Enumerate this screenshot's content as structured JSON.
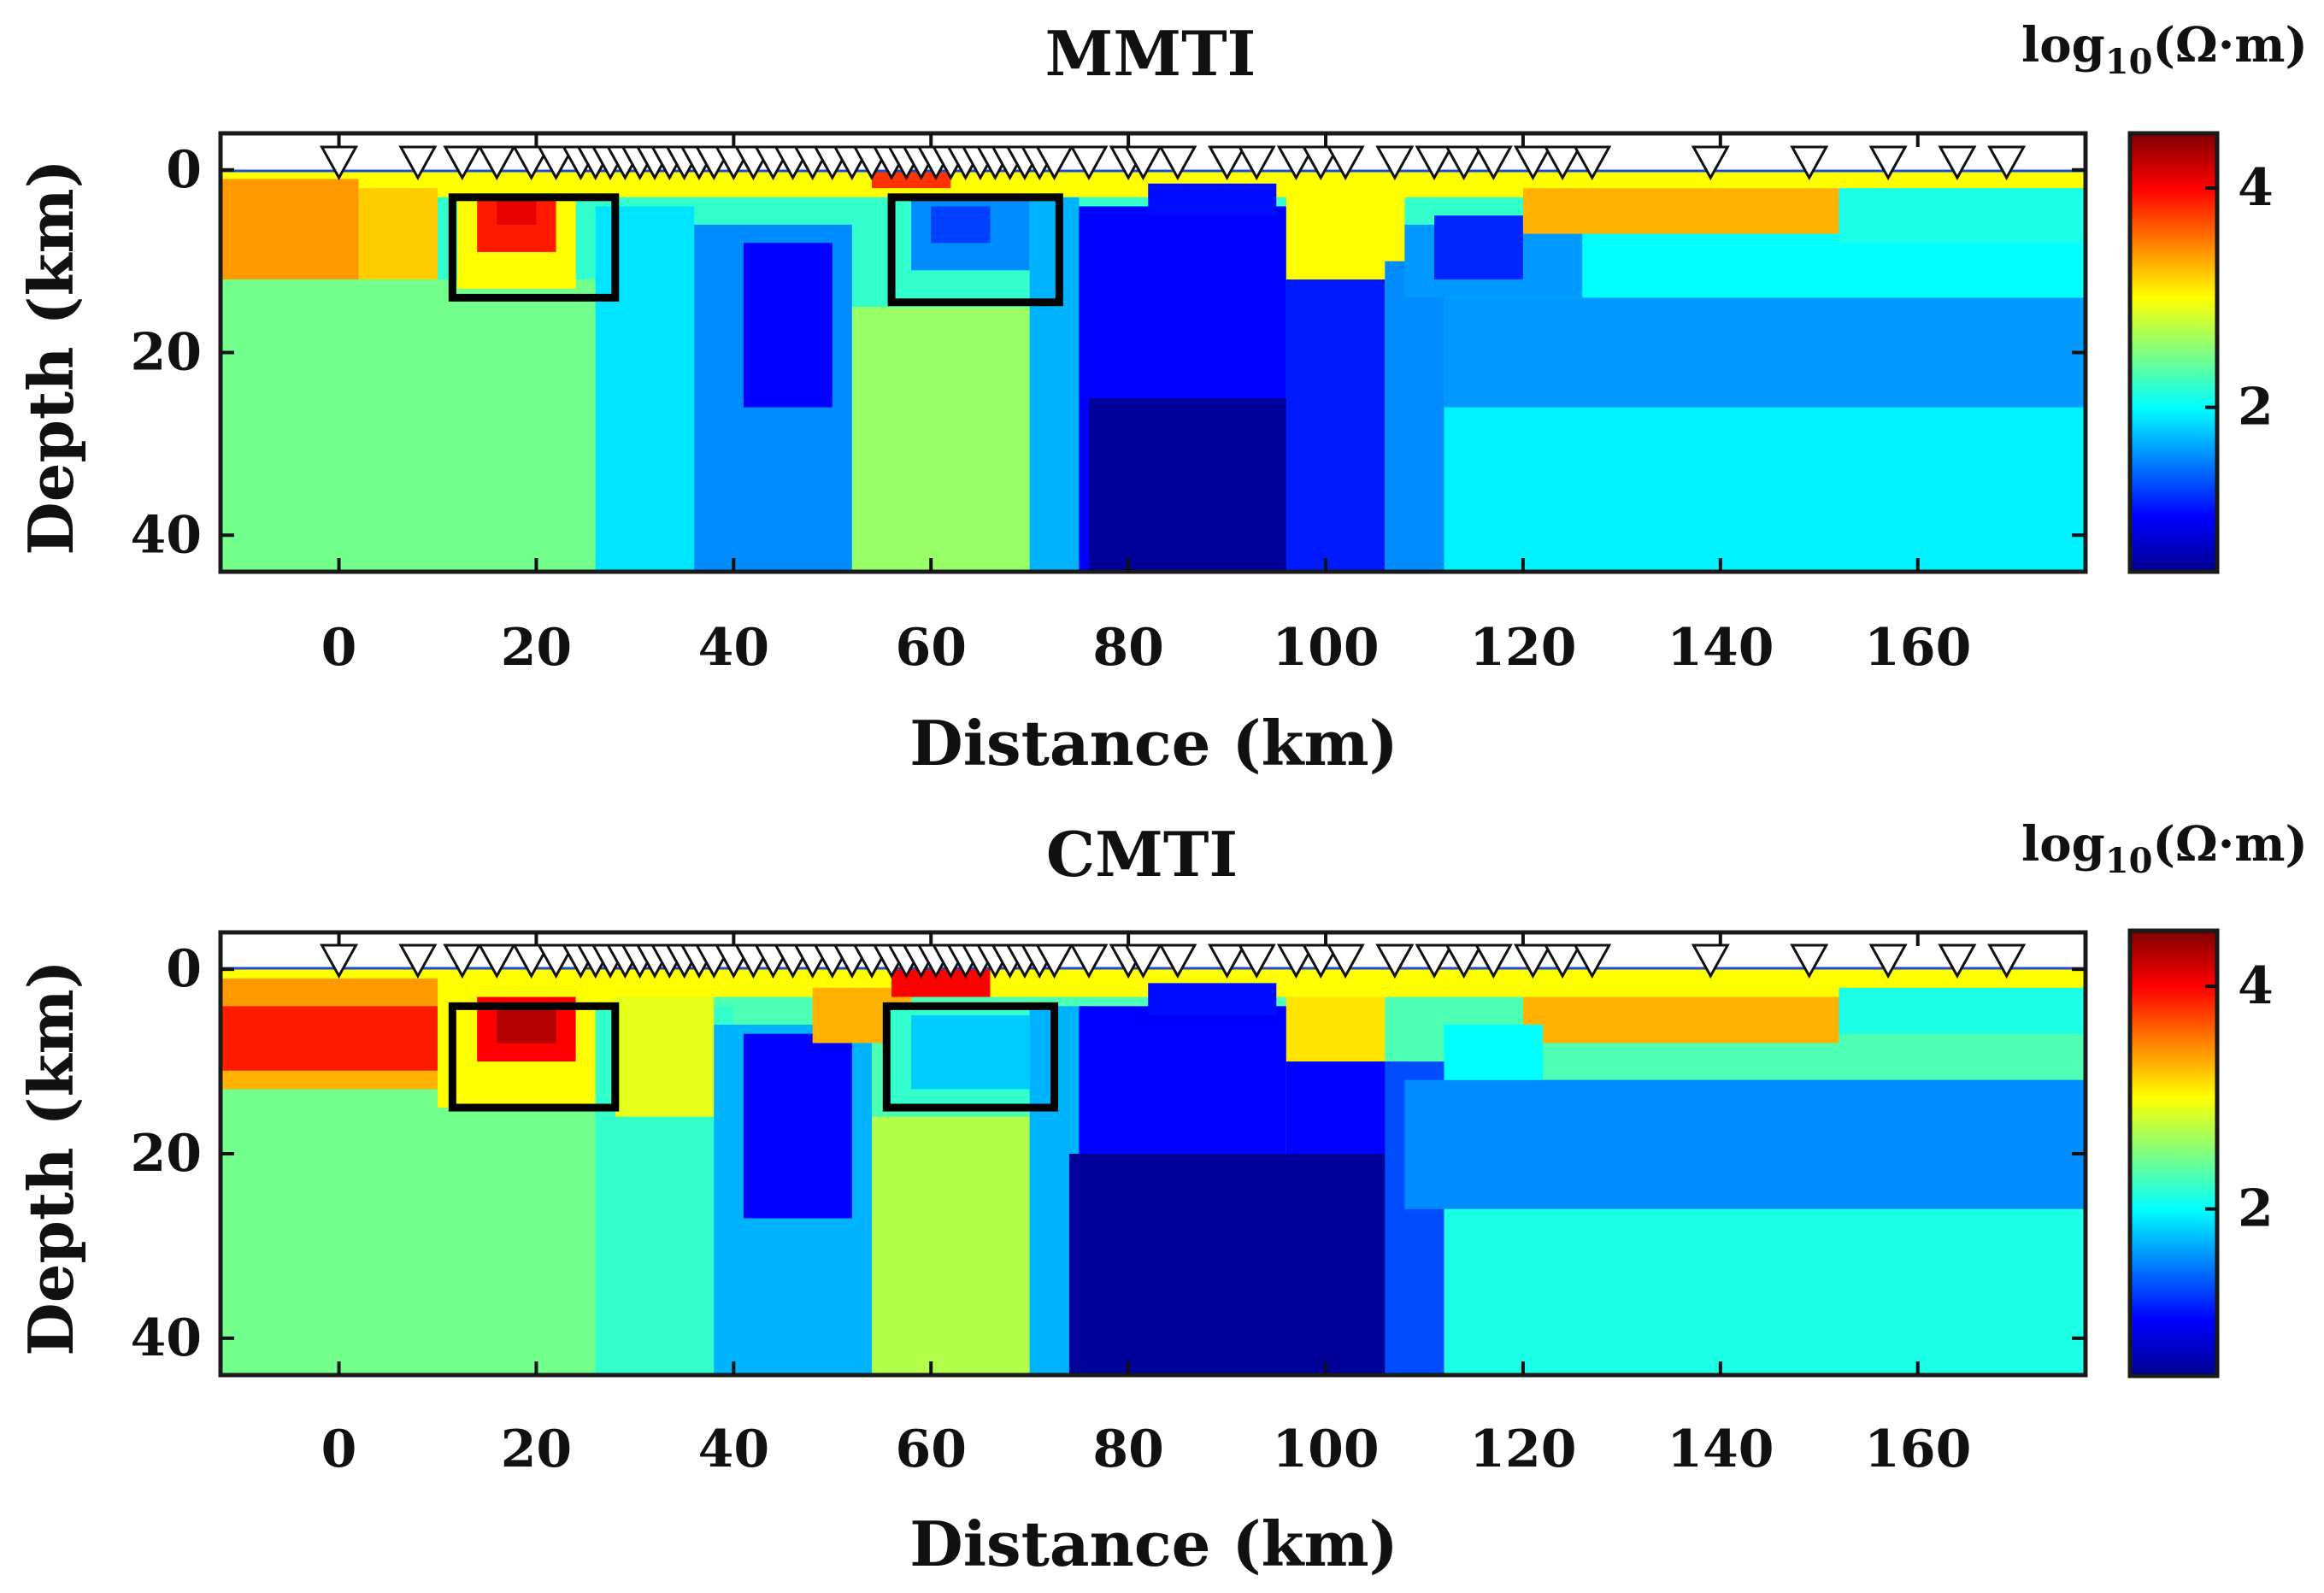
{
  "chart_data": [
    {
      "type": "heatmap",
      "title": "MMTI",
      "xlabel": "Distance (km)",
      "ylabel": "Depth (km)",
      "xlim": [
        -12,
        177
      ],
      "ylim": [
        44,
        -4
      ],
      "xticks": [
        0,
        20,
        40,
        60,
        80,
        100,
        120,
        140,
        160
      ],
      "yticks": [
        0,
        20,
        40
      ],
      "colorbar": {
        "unit_main": "log",
        "unit_sub": "10",
        "unit_tail": "(Ω·m)",
        "range": [
          0.5,
          4.5
        ],
        "ticks": [
          2,
          4
        ]
      },
      "stations_km": [
        0,
        8,
        12.5,
        16,
        19.5,
        22,
        24.5,
        26,
        27.5,
        29,
        30.5,
        32,
        33.5,
        35,
        36.5,
        38,
        40,
        42,
        44,
        46,
        48,
        50,
        52,
        54,
        56,
        57.5,
        59,
        60.5,
        62,
        63.5,
        65,
        66.5,
        68,
        69.5,
        71,
        72.5,
        76,
        80,
        81.5,
        85,
        90,
        93,
        97,
        99.5,
        102,
        107,
        111,
        114,
        117,
        121,
        124,
        127,
        139,
        149,
        157,
        164,
        169
      ],
      "highlight_boxes_km": [
        {
          "x": [
            11.5,
            28
          ],
          "depth": [
            3,
            14
          ]
        },
        {
          "x": [
            56,
            73
          ],
          "depth": [
            3,
            14.5
          ]
        }
      ],
      "resistivity_blocks": [
        {
          "x": [
            -12,
            177
          ],
          "depth": [
            0,
            44
          ],
          "value": 2.2
        },
        {
          "x": [
            -12,
            177
          ],
          "depth": [
            0,
            3
          ],
          "value": 3.0
        },
        {
          "x": [
            -12,
            2
          ],
          "depth": [
            1,
            12
          ],
          "value": 3.4
        },
        {
          "x": [
            2,
            10
          ],
          "depth": [
            2,
            13
          ],
          "value": 3.2
        },
        {
          "x": [
            -12,
            26
          ],
          "depth": [
            12,
            44
          ],
          "value": 2.45
        },
        {
          "x": [
            12,
            24
          ],
          "depth": [
            3,
            13
          ],
          "value": 3.0
        },
        {
          "x": [
            14,
            22
          ],
          "depth": [
            3,
            9
          ],
          "value": 3.9
        },
        {
          "x": [
            16,
            20
          ],
          "depth": [
            3,
            6
          ],
          "value": 4.1
        },
        {
          "x": [
            26,
            36
          ],
          "depth": [
            4,
            44
          ],
          "value": 1.9
        },
        {
          "x": [
            36,
            52
          ],
          "depth": [
            6,
            44
          ],
          "value": 1.55
        },
        {
          "x": [
            41,
            50
          ],
          "depth": [
            8,
            26
          ],
          "value": 1.0
        },
        {
          "x": [
            52,
            70
          ],
          "depth": [
            15,
            44
          ],
          "value": 2.6
        },
        {
          "x": [
            56,
            73
          ],
          "depth": [
            3,
            14
          ],
          "value": 2.2
        },
        {
          "x": [
            58,
            70
          ],
          "depth": [
            3,
            11
          ],
          "value": 1.55
        },
        {
          "x": [
            60,
            66
          ],
          "depth": [
            4,
            8
          ],
          "value": 1.25
        },
        {
          "x": [
            54,
            62
          ],
          "depth": [
            0,
            2
          ],
          "value": 3.8
        },
        {
          "x": [
            70,
            75
          ],
          "depth": [
            3,
            44
          ],
          "value": 1.7
        },
        {
          "x": [
            75,
            96
          ],
          "depth": [
            4,
            44
          ],
          "value": 1.0
        },
        {
          "x": [
            82,
            95
          ],
          "depth": [
            1.5,
            5
          ],
          "value": 1.05
        },
        {
          "x": [
            76,
            100
          ],
          "depth": [
            25,
            44
          ],
          "value": 0.55
        },
        {
          "x": [
            96,
            106
          ],
          "depth": [
            12,
            44
          ],
          "value": 1.1
        },
        {
          "x": [
            96,
            108
          ],
          "depth": [
            2,
            12
          ],
          "value": 3.0
        },
        {
          "x": [
            106,
            112
          ],
          "depth": [
            10,
            44
          ],
          "value": 1.55
        },
        {
          "x": [
            108,
            128
          ],
          "depth": [
            6,
            14
          ],
          "value": 1.6
        },
        {
          "x": [
            111,
            120
          ],
          "depth": [
            5,
            12
          ],
          "value": 1.15
        },
        {
          "x": [
            112,
            177
          ],
          "depth": [
            14,
            26
          ],
          "value": 1.6
        },
        {
          "x": [
            112,
            177
          ],
          "depth": [
            26,
            44
          ],
          "value": 1.95
        },
        {
          "x": [
            120,
            152
          ],
          "depth": [
            2,
            7
          ],
          "value": 3.3
        },
        {
          "x": [
            126,
            177
          ],
          "depth": [
            7,
            14
          ],
          "value": 2.0
        },
        {
          "x": [
            152,
            177
          ],
          "depth": [
            2,
            8
          ],
          "value": 2.1
        }
      ]
    },
    {
      "type": "heatmap",
      "title": "CMTI",
      "xlabel": "Distance (km)",
      "ylabel": "Depth (km)",
      "xlim": [
        -12,
        177
      ],
      "ylim": [
        44,
        -4
      ],
      "xticks": [
        0,
        20,
        40,
        60,
        80,
        100,
        120,
        140,
        160
      ],
      "yticks": [
        0,
        20,
        40
      ],
      "colorbar": {
        "unit_main": "log",
        "unit_sub": "10",
        "unit_tail": "(Ω·m)",
        "range": [
          0.5,
          4.5
        ],
        "ticks": [
          2,
          4
        ]
      },
      "stations_km": [
        0,
        8,
        12.5,
        16,
        19.5,
        22,
        24.5,
        26,
        27.5,
        29,
        30.5,
        32,
        33.5,
        35,
        36.5,
        38,
        40,
        42,
        44,
        46,
        48,
        50,
        52,
        54,
        56,
        57.5,
        59,
        60.5,
        62,
        63.5,
        65,
        66.5,
        68,
        69.5,
        71,
        72.5,
        76,
        80,
        81.5,
        85,
        90,
        93,
        97,
        99.5,
        102,
        107,
        111,
        114,
        117,
        121,
        124,
        127,
        139,
        149,
        157,
        164,
        169
      ],
      "highlight_boxes_km": [
        {
          "x": [
            11.5,
            28
          ],
          "depth": [
            4,
            15
          ]
        },
        {
          "x": [
            55.5,
            72.5
          ],
          "depth": [
            4,
            15
          ]
        }
      ],
      "resistivity_blocks": [
        {
          "x": [
            -12,
            177
          ],
          "depth": [
            0,
            44
          ],
          "value": 2.3
        },
        {
          "x": [
            -12,
            177
          ],
          "depth": [
            0,
            3
          ],
          "value": 3.0
        },
        {
          "x": [
            -12,
            10
          ],
          "depth": [
            1,
            4
          ],
          "value": 3.4
        },
        {
          "x": [
            -12,
            10
          ],
          "depth": [
            4,
            11
          ],
          "value": 3.9
        },
        {
          "x": [
            -12,
            10
          ],
          "depth": [
            11,
            13
          ],
          "value": 3.3
        },
        {
          "x": [
            -12,
            26
          ],
          "depth": [
            13,
            44
          ],
          "value": 2.45
        },
        {
          "x": [
            10,
            28
          ],
          "depth": [
            3,
            15
          ],
          "value": 3.0
        },
        {
          "x": [
            14,
            24
          ],
          "depth": [
            3,
            10
          ],
          "value": 4.0
        },
        {
          "x": [
            16,
            22
          ],
          "depth": [
            4,
            8
          ],
          "value": 4.3
        },
        {
          "x": [
            26,
            40
          ],
          "depth": [
            4,
            44
          ],
          "value": 2.2
        },
        {
          "x": [
            28,
            38
          ],
          "depth": [
            3,
            16
          ],
          "value": 2.9
        },
        {
          "x": [
            38,
            54
          ],
          "depth": [
            6,
            44
          ],
          "value": 1.7
        },
        {
          "x": [
            41,
            52
          ],
          "depth": [
            7,
            27
          ],
          "value": 1.0
        },
        {
          "x": [
            48,
            58
          ],
          "depth": [
            2,
            8
          ],
          "value": 3.3
        },
        {
          "x": [
            54,
            70
          ],
          "depth": [
            16,
            44
          ],
          "value": 2.7
        },
        {
          "x": [
            55.5,
            72.5
          ],
          "depth": [
            4,
            15
          ],
          "value": 2.2
        },
        {
          "x": [
            58,
            70
          ],
          "depth": [
            5,
            13
          ],
          "value": 1.8
        },
        {
          "x": [
            56,
            66
          ],
          "depth": [
            0,
            3
          ],
          "value": 4.0
        },
        {
          "x": [
            70,
            76
          ],
          "depth": [
            4,
            44
          ],
          "value": 1.7
        },
        {
          "x": [
            75,
            96
          ],
          "depth": [
            4,
            44
          ],
          "value": 1.0
        },
        {
          "x": [
            82,
            95
          ],
          "depth": [
            1.5,
            5
          ],
          "value": 1.05
        },
        {
          "x": [
            74,
            108
          ],
          "depth": [
            20,
            44
          ],
          "value": 0.55
        },
        {
          "x": [
            96,
            106
          ],
          "depth": [
            3,
            10
          ],
          "value": 3.1
        },
        {
          "x": [
            96,
            108
          ],
          "depth": [
            10,
            20
          ],
          "value": 1.0
        },
        {
          "x": [
            106,
            112
          ],
          "depth": [
            10,
            44
          ],
          "value": 1.3
        },
        {
          "x": [
            108,
            177
          ],
          "depth": [
            12,
            26
          ],
          "value": 1.55
        },
        {
          "x": [
            112,
            177
          ],
          "depth": [
            26,
            44
          ],
          "value": 2.1
        },
        {
          "x": [
            120,
            152
          ],
          "depth": [
            3,
            8
          ],
          "value": 3.3
        },
        {
          "x": [
            112,
            122
          ],
          "depth": [
            6,
            12
          ],
          "value": 2.0
        },
        {
          "x": [
            152,
            177
          ],
          "depth": [
            2,
            7
          ],
          "value": 2.1
        }
      ]
    }
  ]
}
